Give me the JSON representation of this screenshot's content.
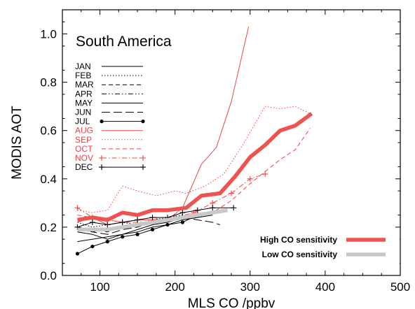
{
  "chart_data": {
    "type": "line",
    "title": "South America",
    "xlabel": "MLS CO /ppbv",
    "ylabel": "MODIS AOT",
    "xlim": [
      50,
      500
    ],
    "ylim": [
      0.0,
      1.1
    ],
    "xticks": [
      100,
      200,
      300,
      400,
      500
    ],
    "yticks": [
      0.0,
      0.2,
      0.4,
      0.6,
      0.8,
      1.0
    ],
    "ytick_labels": [
      "0.0",
      "0.2",
      "0.4",
      "0.6",
      "0.8",
      "1.0"
    ],
    "grid": false,
    "colors": {
      "black": "#000000",
      "red": "#ee4444",
      "thick_red": "#ef5350",
      "gray": "#c8c8c8"
    },
    "series": [
      {
        "name": "JAN",
        "style": "solid",
        "color": "#000000",
        "x": [
          70,
          90,
          110,
          130,
          150,
          170,
          190,
          210,
          230,
          250
        ],
        "y": [
          0.18,
          0.17,
          0.15,
          0.17,
          0.18,
          0.2,
          0.21,
          0.23,
          0.24,
          0.25
        ]
      },
      {
        "name": "FEB",
        "style": "dotted",
        "color": "#000000",
        "x": [
          70,
          90,
          110,
          130,
          150,
          170,
          190,
          210,
          230,
          250
        ],
        "y": [
          0.22,
          0.2,
          0.21,
          0.22,
          0.21,
          0.23,
          0.24,
          0.25,
          0.24,
          0.26
        ]
      },
      {
        "name": "MAR",
        "style": "dashed",
        "color": "#000000",
        "x": [
          70,
          90,
          110,
          130,
          150,
          170,
          190,
          210,
          230
        ],
        "y": [
          0.2,
          0.19,
          0.18,
          0.2,
          0.21,
          0.22,
          0.23,
          0.24,
          0.25
        ]
      },
      {
        "name": "APR",
        "style": "dashdotdot",
        "color": "#000000",
        "x": [
          70,
          90,
          110,
          130,
          150,
          170,
          190,
          210,
          230
        ],
        "y": [
          0.19,
          0.18,
          0.19,
          0.2,
          0.21,
          0.22,
          0.23,
          0.24,
          0.25
        ]
      },
      {
        "name": "MAY",
        "style": "solid",
        "color": "#000000",
        "x": [
          70,
          90,
          110,
          130,
          150,
          170,
          190,
          210
        ],
        "y": [
          0.14,
          0.15,
          0.16,
          0.17,
          0.19,
          0.21,
          0.22,
          0.24
        ]
      },
      {
        "name": "JUN",
        "style": "longdash",
        "color": "#000000",
        "x": [
          70,
          90,
          110,
          130,
          150,
          170,
          190,
          210,
          230,
          250,
          260
        ],
        "y": [
          0.2,
          0.18,
          0.17,
          0.19,
          0.2,
          0.22,
          0.23,
          0.24,
          0.23,
          0.22,
          0.21
        ]
      },
      {
        "name": "JUL",
        "style": "solid-dot",
        "color": "#000000",
        "x": [
          70,
          90,
          110,
          130,
          150,
          170,
          190,
          210,
          230,
          250
        ],
        "y": [
          0.09,
          0.12,
          0.14,
          0.16,
          0.17,
          0.19,
          0.21,
          0.22,
          0.25,
          0.26
        ]
      },
      {
        "name": "AUG",
        "style": "solid",
        "color": "#ee4444",
        "x": [
          70,
          90,
          110,
          130,
          150,
          170,
          190,
          210,
          235,
          255,
          275,
          298
        ],
        "y": [
          0.22,
          0.24,
          0.21,
          0.22,
          0.23,
          0.23,
          0.23,
          0.28,
          0.46,
          0.53,
          0.72,
          1.03
        ]
      },
      {
        "name": "SEP",
        "style": "dotted",
        "color": "#ee4444",
        "x": [
          70,
          90,
          110,
          130,
          150,
          175,
          200,
          215,
          240,
          265,
          290,
          320,
          340,
          360,
          380
        ],
        "y": [
          0.27,
          0.26,
          0.27,
          0.37,
          0.35,
          0.33,
          0.35,
          0.34,
          0.37,
          0.42,
          0.54,
          0.7,
          0.69,
          0.7,
          0.67
        ]
      },
      {
        "name": "OCT",
        "style": "dashed",
        "color": "#ee4444",
        "x": [
          70,
          90,
          110,
          130,
          150,
          175,
          200,
          225,
          250,
          275,
          300,
          320,
          340,
          360,
          380
        ],
        "y": [
          0.25,
          0.24,
          0.23,
          0.22,
          0.22,
          0.22,
          0.23,
          0.24,
          0.26,
          0.31,
          0.38,
          0.43,
          0.48,
          0.52,
          0.61
        ]
      },
      {
        "name": "NOV",
        "style": "dashdot-plus",
        "color": "#ee4444",
        "x": [
          70,
          90,
          110,
          130,
          150,
          175,
          200,
          225,
          250,
          275,
          300,
          320
        ],
        "y": [
          0.28,
          0.24,
          0.23,
          0.22,
          0.23,
          0.23,
          0.24,
          0.26,
          0.3,
          0.34,
          0.4,
          0.42
        ]
      },
      {
        "name": "DEC",
        "style": "solid-plus",
        "color": "#000000",
        "x": [
          70,
          90,
          110,
          130,
          150,
          170,
          190,
          210,
          230,
          250,
          278
        ],
        "y": [
          0.2,
          0.22,
          0.21,
          0.22,
          0.23,
          0.24,
          0.24,
          0.26,
          0.27,
          0.28,
          0.28
        ]
      },
      {
        "name": "High CO sensitivity",
        "style": "thick",
        "color": "#ef5350",
        "x": [
          70,
          90,
          110,
          130,
          150,
          170,
          190,
          215,
          235,
          260,
          280,
          300,
          320,
          340,
          360,
          382
        ],
        "y": [
          0.23,
          0.24,
          0.23,
          0.26,
          0.25,
          0.27,
          0.27,
          0.28,
          0.33,
          0.34,
          0.41,
          0.49,
          0.54,
          0.6,
          0.62,
          0.67
        ]
      },
      {
        "name": "Low CO sensitivity",
        "style": "thick",
        "color": "#c8c8c8",
        "x": [
          70,
          90,
          110,
          130,
          150,
          170,
          190,
          210,
          230,
          250,
          270
        ],
        "y": [
          0.19,
          0.19,
          0.19,
          0.2,
          0.21,
          0.22,
          0.23,
          0.24,
          0.25,
          0.26,
          0.27
        ]
      }
    ]
  }
}
